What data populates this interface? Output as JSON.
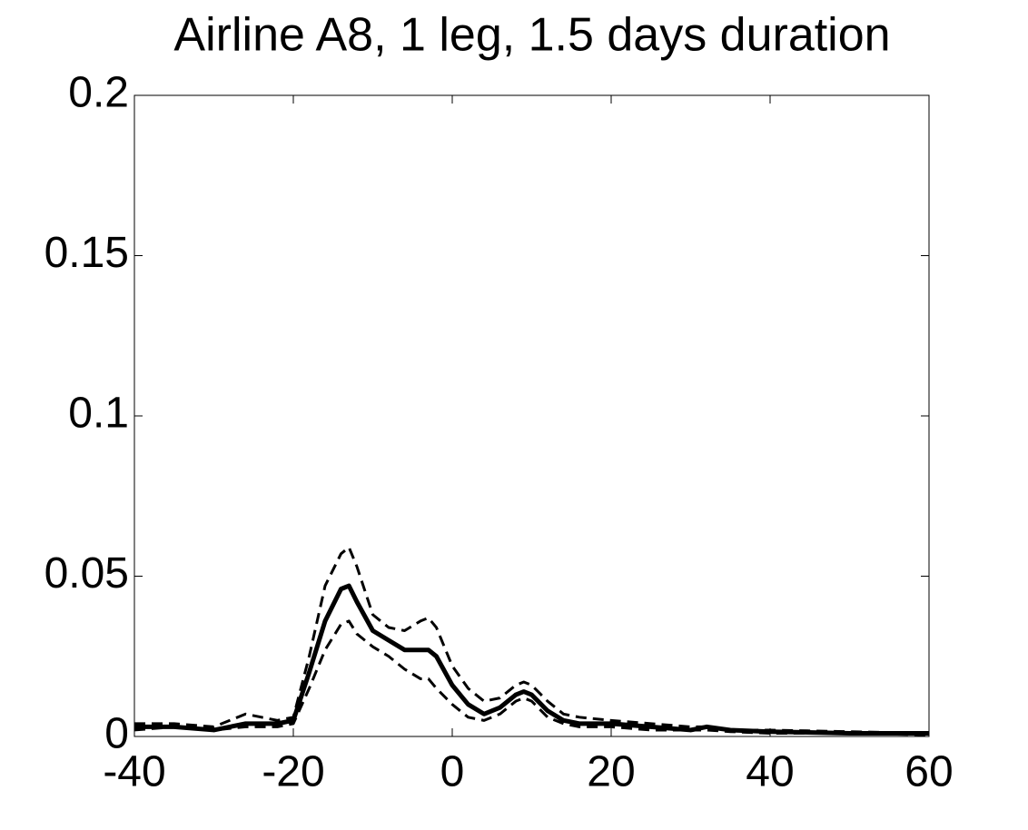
{
  "chart_data": {
    "type": "line",
    "title": "Airline A8, 1 leg, 1.5 days duration",
    "x": [
      -40,
      -35,
      -30,
      -26,
      -24,
      -22,
      -20,
      -18,
      -16,
      -14,
      -13,
      -12,
      -10,
      -8,
      -6,
      -4,
      -3,
      -2,
      0,
      2,
      4,
      6,
      8,
      9,
      10,
      12,
      14,
      16,
      20,
      25,
      30,
      32,
      35,
      40,
      50,
      60
    ],
    "series": [
      {
        "color": "#000000",
        "style": "solid",
        "values": [
          0.003,
          0.003,
          0.002,
          0.004,
          0.004,
          0.004,
          0.005,
          0.02,
          0.036,
          0.046,
          0.047,
          0.042,
          0.033,
          0.03,
          0.027,
          0.027,
          0.027,
          0.025,
          0.016,
          0.01,
          0.007,
          0.009,
          0.013,
          0.014,
          0.013,
          0.008,
          0.005,
          0.004,
          0.004,
          0.003,
          0.002,
          0.003,
          0.002,
          0.0015,
          0.001,
          0.001
        ]
      },
      {
        "color": "#000000",
        "style": "dashed",
        "values": [
          0.004,
          0.004,
          0.003,
          0.007,
          0.006,
          0.005,
          0.006,
          0.025,
          0.047,
          0.057,
          0.059,
          0.053,
          0.038,
          0.034,
          0.033,
          0.036,
          0.037,
          0.034,
          0.022,
          0.015,
          0.011,
          0.012,
          0.016,
          0.017,
          0.016,
          0.011,
          0.007,
          0.006,
          0.005,
          0.004,
          0.003,
          0.003,
          0.002,
          0.002,
          0.0015,
          0.001
        ]
      },
      {
        "color": "#000000",
        "style": "dashed",
        "values": [
          0.002,
          0.003,
          0.002,
          0.003,
          0.003,
          0.003,
          0.004,
          0.015,
          0.027,
          0.035,
          0.036,
          0.032,
          0.028,
          0.025,
          0.021,
          0.018,
          0.018,
          0.015,
          0.01,
          0.006,
          0.005,
          0.007,
          0.011,
          0.012,
          0.011,
          0.006,
          0.004,
          0.003,
          0.003,
          0.002,
          0.002,
          0.002,
          0.0015,
          0.001,
          0.001,
          0.0005
        ]
      }
    ],
    "xlim": [
      -40,
      60
    ],
    "xticks": [
      -40,
      -20,
      0,
      20,
      40,
      60
    ],
    "ylim": [
      0,
      0.2
    ],
    "yticks": [
      0,
      0.05,
      0.1,
      0.15,
      0.2
    ],
    "grid": false
  }
}
